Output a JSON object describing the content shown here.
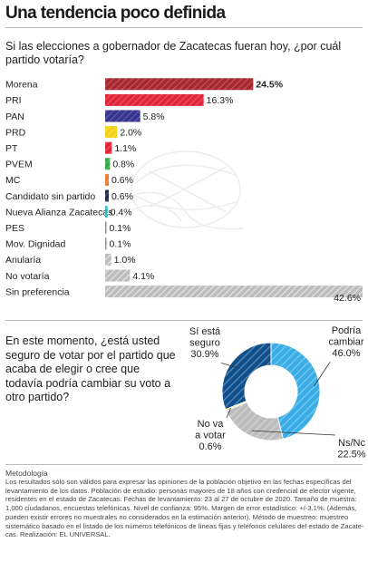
{
  "title": "Una tendencia poco definida",
  "chart_data": [
    {
      "type": "bar",
      "orientation": "horizontal",
      "title": "Si las elecciones a gobernador de Zacatecas fueran hoy, ¿por cuál partido votaría?",
      "unit": "%",
      "categories": [
        "Morena",
        "PRI",
        "PAN",
        "PRD",
        "PT",
        "PVEM",
        "MC",
        "Candidato sin partido",
        "Nueva Alianza Zacatecas",
        "PES",
        "Mov. Dignidad",
        "Anularía",
        "No votaría",
        "Sin preferencia"
      ],
      "values": [
        24.5,
        16.3,
        5.8,
        2.0,
        1.1,
        0.8,
        0.6,
        0.6,
        0.4,
        0.1,
        0.1,
        1.0,
        4.1,
        42.6
      ],
      "value_labels": [
        "24.5%",
        "16.3%",
        "5.8%",
        "2.0%",
        "1.1%",
        "0.8%",
        "0.6%",
        "0.6%",
        "0.4%",
        "0.1%",
        "0.1%",
        "1.0%",
        "4.1%",
        "42.6%"
      ],
      "colors": [
        "#a8282f",
        "#e2263a",
        "#36358f",
        "#f2d216",
        "#e2263a",
        "#3aa547",
        "#ef7b35",
        "#1e2e4f",
        "#2bb3b8",
        "#8a8a8a",
        "#8a8a8a",
        "#bdbdbd",
        "#bdbdbd",
        "#bdbdbd"
      ],
      "hatched": [
        false,
        false,
        false,
        false,
        false,
        false,
        false,
        false,
        false,
        false,
        false,
        true,
        true,
        true
      ],
      "bold_value_index": 0,
      "xlim": [
        0,
        42.6
      ]
    },
    {
      "type": "pie",
      "variant": "donut",
      "title": "En este momento, ¿está usted seguro de votar por el partido que acaba de elegir o cree que todavía podría cambiar su voto a otro partido?",
      "slices": [
        {
          "label_lines": [
            "Podría",
            "cambiar"
          ],
          "value": 46.0,
          "value_label": "46.0%",
          "color": "#39aee6"
        },
        {
          "label_lines": [
            "Ns/Nc"
          ],
          "value": 22.5,
          "value_label": "22.5%",
          "color": "#bdbdbd"
        },
        {
          "label_lines": [
            "No va",
            "a votar"
          ],
          "value": 0.6,
          "value_label": "0.6%",
          "color": "#e8de3a"
        },
        {
          "label_lines": [
            "Sí está",
            "seguro"
          ],
          "value": 30.9,
          "value_label": "30.9%",
          "color": "#0e4f8c"
        }
      ],
      "start_angle_deg": 0,
      "direction": "clockwise",
      "hatched": true
    }
  ],
  "methodology": {
    "heading": "Metodología",
    "lines": [
      "Los resultados sólo son válidos para expresar las opiniones de la población objetivo en las fechas específicas del",
      "levantamiento de los datos. Población de estudio: personas mayores de 18 años con credencial de elector vigente,",
      "residentes en el estado de Zacatecas. Fechas de levantamiento: 23 al 27 de octubre de 2020. Tamaño de muestra:",
      "1,000 ciudadanos, encuestas telefónicas. Nivel de confianza: 95%. Margen de error estadístico: +/-3.1%. (Además,",
      "pueden existir errores no muestrales no considerados en la estimación anterior). Método de muestreo: muestreo",
      "sistemático basado en el listado de los números telefónicos de líneas fijas y teléfonos celulares del estado de Zacate-",
      "cas. Realización: EL UNIVERSAL."
    ]
  }
}
